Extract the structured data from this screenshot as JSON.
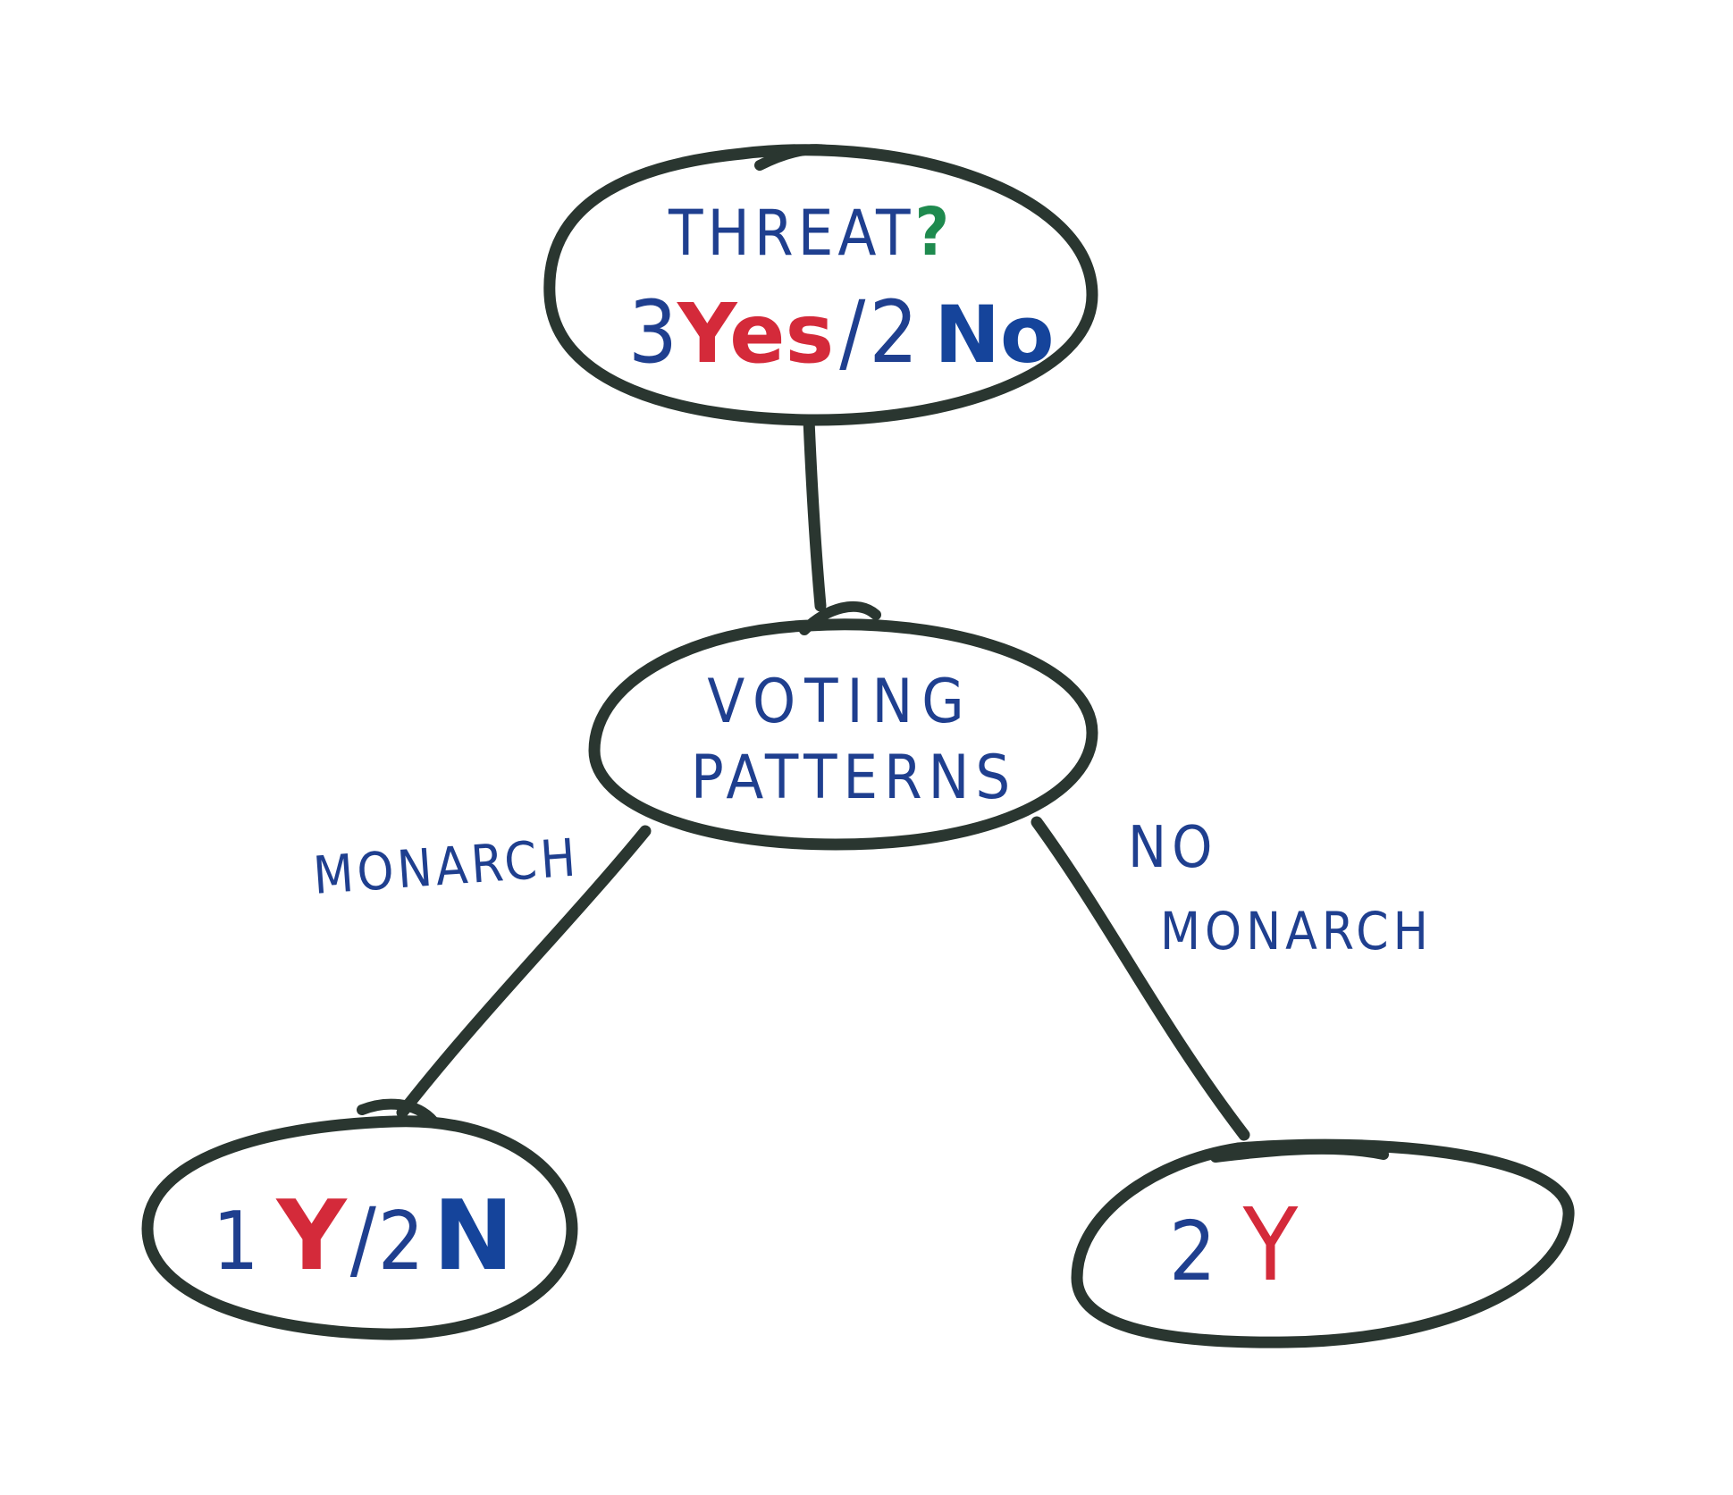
{
  "colors": {
    "outline": "#2a3630",
    "ink_blue": "#1f3f8f",
    "ink_blue_bold": "#15449b",
    "ink_red": "#d42a3a",
    "ink_green": "#1e8a4e",
    "background": "#ffffff"
  },
  "nodes": {
    "root": {
      "title": "THREAT",
      "question_mark": "?",
      "count_yes_number": "3",
      "count_yes_word": "Yes",
      "separator": "/",
      "count_no_number": "2",
      "count_no_word": "No"
    },
    "split": {
      "line1": "VOTING",
      "line2": "PATTERNS"
    },
    "left_leaf": {
      "yes_number": "1",
      "yes_letter": "Y",
      "separator": "/",
      "no_number": "2",
      "no_letter": "N"
    },
    "right_leaf": {
      "yes_number": "2",
      "yes_letter": "Y"
    }
  },
  "edges": {
    "left_label": "MONARCH",
    "right_label_line1": "NO",
    "right_label_line2": "MONARCH"
  }
}
